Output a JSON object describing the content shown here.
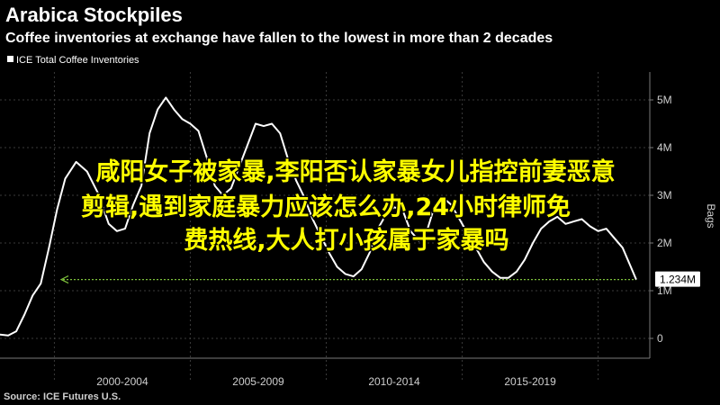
{
  "title": "Arabica Stockpiles",
  "subtitle": "Coffee inventories at exchange have fallen to the lowest in more than 2 decades",
  "legend_label": "ICE Total Coffee Inventories",
  "source": "Source: ICE Futures U.S.",
  "right_axis_label": "Bags",
  "last_value_label": "1.234M",
  "overlay_lines": [
    "咸阳女子被家暴,李阳否认家暴女儿指控前妻恶意",
    "剪辑,遇到家庭暴力应该怎么办,24小时律师免",
    "费热线,大人打小孩属于家暴吗"
  ],
  "colors": {
    "background": "#000000",
    "line": "#ffffff",
    "grid": "#3a3a3a",
    "reference_line": "#7cbf3a",
    "label_box": "#ffffff",
    "overlay_text": "#ffff00"
  },
  "chart_data": {
    "type": "line",
    "title": "Arabica Stockpiles",
    "subtitle": "Coffee inventories at exchange have fallen to the lowest in more than 2 decades",
    "ylabel": "Bags",
    "ylim": [
      0,
      5500000
    ],
    "y_ticks": [
      0,
      1000000,
      2000000,
      3000000,
      4000000,
      5000000
    ],
    "y_tick_labels": [
      "0",
      "1M",
      "2M",
      "3M",
      "4M",
      "5M"
    ],
    "x_tick_labels": [
      "2000-2004",
      "2005-2009",
      "2010-2014",
      "2015-2019"
    ],
    "grid": true,
    "legend_position": "top-left",
    "reference_value": 1234000,
    "last_value": 1234000,
    "series": [
      {
        "name": "ICE Total Coffee Inventories",
        "x": [
          1998.0,
          1998.3,
          1998.6,
          1998.9,
          1999.2,
          1999.5,
          1999.8,
          2000.1,
          2000.4,
          2000.8,
          2001.2,
          2001.6,
          2002.0,
          2002.3,
          2002.6,
          2002.9,
          2003.2,
          2003.5,
          2003.8,
          2004.1,
          2004.4,
          2004.7,
          2005.0,
          2005.3,
          2005.6,
          2005.9,
          2006.2,
          2006.5,
          2006.8,
          2007.1,
          2007.4,
          2007.7,
          2008.0,
          2008.3,
          2008.6,
          2008.9,
          2009.2,
          2009.5,
          2009.8,
          2010.1,
          2010.4,
          2010.7,
          2011.0,
          2011.3,
          2011.6,
          2011.9,
          2012.2,
          2012.5,
          2012.8,
          2013.1,
          2013.4,
          2013.7,
          2014.0,
          2014.3,
          2014.6,
          2014.9,
          2015.2,
          2015.5,
          2015.8,
          2016.1,
          2016.4,
          2016.7,
          2017.0,
          2017.3,
          2017.6,
          2017.9,
          2018.2,
          2018.5,
          2018.8,
          2019.1,
          2019.4,
          2019.7,
          2020.0,
          2020.3,
          2020.6,
          2020.9,
          2021.2,
          2021.4
        ],
        "values": [
          80000,
          60000,
          150000,
          500000,
          900000,
          1150000,
          1900000,
          2700000,
          3350000,
          3700000,
          3500000,
          3050000,
          2400000,
          2250000,
          2300000,
          2800000,
          3200000,
          4300000,
          4800000,
          5050000,
          4800000,
          4600000,
          4500000,
          4350000,
          3800000,
          3200000,
          3000000,
          3150000,
          3600000,
          4050000,
          4500000,
          4450000,
          4500000,
          4300000,
          3750000,
          3300000,
          2950000,
          2500000,
          2150000,
          1800000,
          1500000,
          1350000,
          1300000,
          1450000,
          1800000,
          2300000,
          2600000,
          2750000,
          2700000,
          2250000,
          2050000,
          2250000,
          2800000,
          2950000,
          2800000,
          2500000,
          2200000,
          1900000,
          1600000,
          1400000,
          1270000,
          1270000,
          1400000,
          1650000,
          2000000,
          2300000,
          2450000,
          2550000,
          2400000,
          2450000,
          2500000,
          2350000,
          2250000,
          2300000,
          2100000,
          1900000,
          1500000,
          1234000
        ]
      }
    ]
  }
}
